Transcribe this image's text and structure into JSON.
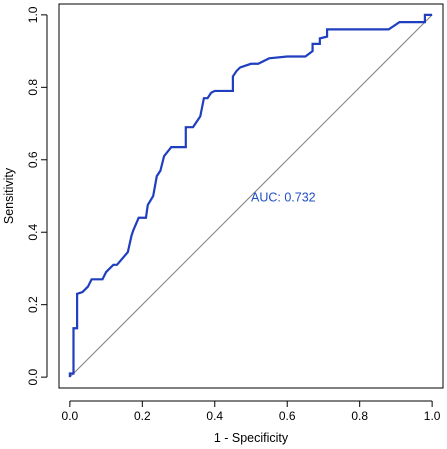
{
  "chart_data": {
    "type": "line",
    "title": "",
    "xlabel": "1 -  Specificity",
    "ylabel": "Sensitivity",
    "xlim": [
      -0.03,
      1.03
    ],
    "ylim": [
      -0.03,
      1.03
    ],
    "x_ticks": [
      0.0,
      0.2,
      0.4,
      0.6,
      0.8,
      1.0
    ],
    "y_ticks": [
      0.0,
      0.2,
      0.4,
      0.6,
      0.8,
      1.0
    ],
    "x_tick_labels": [
      "0.0",
      "0.2",
      "0.4",
      "0.6",
      "0.8",
      "1.0"
    ],
    "y_tick_labels": [
      "0.0",
      "0.2",
      "0.4",
      "0.6",
      "0.8",
      "1.0"
    ],
    "grid": false,
    "annotation": {
      "text": "AUC: 0.732",
      "x": 0.5,
      "y": 0.485,
      "color": "#1f4fc4"
    },
    "reference_line": {
      "from": [
        0,
        0
      ],
      "to": [
        1,
        1
      ],
      "color": "#808080"
    },
    "series": [
      {
        "color": "#1f3fbf",
        "x": [
          0.0,
          0.0,
          0.01,
          0.01,
          0.02,
          0.02,
          0.035,
          0.05,
          0.06,
          0.09,
          0.1,
          0.12,
          0.13,
          0.16,
          0.17,
          0.175,
          0.19,
          0.21,
          0.215,
          0.23,
          0.24,
          0.25,
          0.255,
          0.26,
          0.28,
          0.32,
          0.32,
          0.34,
          0.35,
          0.36,
          0.37,
          0.38,
          0.39,
          0.4,
          0.43,
          0.45,
          0.45,
          0.46,
          0.47,
          0.5,
          0.52,
          0.55,
          0.6,
          0.65,
          0.67,
          0.67,
          0.69,
          0.69,
          0.71,
          0.71,
          0.88,
          0.91,
          0.98,
          0.98,
          1.0
        ],
        "y": [
          0.0,
          0.01,
          0.01,
          0.135,
          0.135,
          0.23,
          0.235,
          0.25,
          0.27,
          0.27,
          0.29,
          0.31,
          0.31,
          0.345,
          0.39,
          0.405,
          0.44,
          0.44,
          0.475,
          0.5,
          0.555,
          0.57,
          0.59,
          0.61,
          0.635,
          0.635,
          0.69,
          0.69,
          0.705,
          0.72,
          0.77,
          0.77,
          0.785,
          0.79,
          0.79,
          0.79,
          0.83,
          0.845,
          0.855,
          0.865,
          0.865,
          0.88,
          0.885,
          0.885,
          0.9,
          0.92,
          0.92,
          0.935,
          0.94,
          0.96,
          0.96,
          0.98,
          0.98,
          1.0,
          1.0
        ]
      }
    ]
  }
}
